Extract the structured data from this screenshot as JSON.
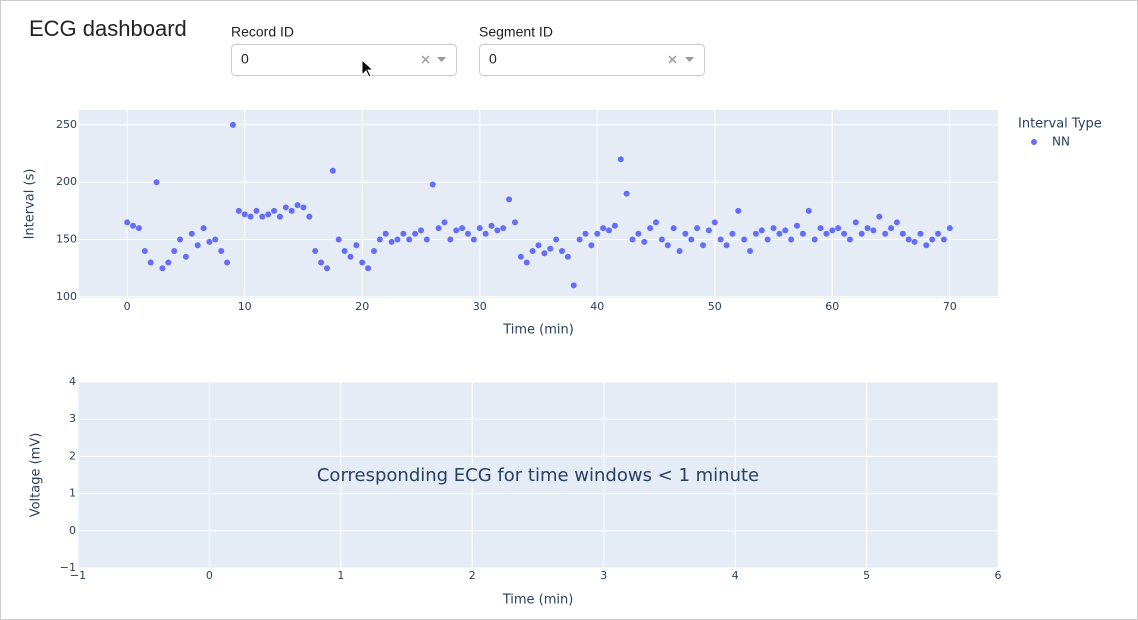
{
  "header": {
    "title": "ECG dashboard"
  },
  "controls": [
    {
      "label": "Record ID",
      "value": "0"
    },
    {
      "label": "Segment ID",
      "value": "0"
    }
  ],
  "chart_data": [
    {
      "type": "scatter",
      "xlabel": "Time (min)",
      "ylabel": "Interval (s)",
      "xlim": [
        -4.1,
        74.1
      ],
      "ylim": [
        99,
        263
      ],
      "xticks": [
        0,
        10,
        20,
        30,
        40,
        50,
        60,
        70
      ],
      "yticks": [
        100,
        150,
        200,
        250
      ],
      "grid": true,
      "legend_title": "Interval Type",
      "legend": "top-right",
      "x": [
        0,
        0.5,
        1,
        1.5,
        2,
        2.5,
        3,
        3.5,
        4,
        4.5,
        5,
        5.5,
        6,
        6.5,
        7,
        7.5,
        8,
        8.5,
        9,
        9.5,
        10,
        10.5,
        11,
        11.5,
        12,
        12.5,
        13,
        13.5,
        14,
        14.5,
        15,
        15.5,
        16,
        16.5,
        17,
        17.5,
        18,
        18.5,
        19,
        19.5,
        20,
        20.5,
        21,
        21.5,
        22,
        22.5,
        23,
        23.5,
        24,
        24.5,
        25,
        25.5,
        26,
        26.5,
        27,
        27.5,
        28,
        28.5,
        29,
        29.5,
        30,
        30.5,
        31,
        31.5,
        32,
        32.5,
        33,
        33.5,
        34,
        34.5,
        35,
        35.5,
        36,
        36.5,
        37,
        37.5,
        38,
        38.5,
        39,
        39.5,
        40,
        40.5,
        41,
        41.5,
        42,
        42.5,
        43,
        43.5,
        44,
        44.5,
        45,
        45.5,
        46,
        46.5,
        47,
        47.5,
        48,
        48.5,
        49,
        49.5,
        50,
        50.5,
        51,
        51.5,
        52,
        52.5,
        53,
        53.5,
        54,
        54.5,
        55,
        55.5,
        56,
        56.5,
        57,
        57.5,
        58,
        58.5,
        59,
        59.5,
        60,
        60.5,
        61,
        61.5,
        62,
        62.5,
        63,
        63.5,
        64,
        64.5,
        65,
        65.5,
        66,
        66.5,
        67,
        67.5,
        68,
        68.5,
        69,
        69.5,
        70
      ],
      "series": [
        {
          "name": "NN",
          "color": "#636efa",
          "values": [
            165,
            162,
            160,
            140,
            130,
            200,
            125,
            130,
            140,
            150,
            135,
            155,
            145,
            160,
            148,
            150,
            140,
            130,
            250,
            175,
            172,
            170,
            175,
            170,
            172,
            175,
            170,
            178,
            175,
            180,
            178,
            170,
            140,
            130,
            125,
            210,
            150,
            140,
            135,
            145,
            130,
            125,
            140,
            150,
            155,
            148,
            150,
            155,
            150,
            155,
            158,
            150,
            198,
            160,
            165,
            150,
            158,
            160,
            155,
            150,
            160,
            155,
            162,
            158,
            160,
            185,
            165,
            135,
            130,
            140,
            145,
            138,
            142,
            150,
            140,
            135,
            110,
            150,
            155,
            145,
            155,
            160,
            158,
            162,
            220,
            190,
            150,
            155,
            148,
            160,
            165,
            150,
            145,
            160,
            140,
            155,
            150,
            160,
            145,
            158,
            165,
            150,
            145,
            155,
            175,
            150,
            140,
            155,
            158,
            150,
            160,
            155,
            158,
            150,
            162,
            155,
            175,
            150,
            160,
            155,
            158,
            160,
            155,
            150,
            165,
            155,
            160,
            158,
            170,
            155,
            160,
            165,
            155,
            150,
            148,
            155,
            145,
            150,
            155,
            150,
            160
          ]
        }
      ]
    },
    {
      "type": "scatter",
      "xlabel": "Time (min)",
      "ylabel": "Voltage (mV)",
      "xlim": [
        -1,
        6
      ],
      "ylim": [
        -1,
        4
      ],
      "xticks": [
        {
          "value": -1,
          "label": "−1"
        },
        0,
        1,
        2,
        3,
        4,
        5,
        6
      ],
      "yticks": [
        {
          "value": -1,
          "label": "−1"
        },
        0,
        1,
        2,
        3,
        4
      ],
      "grid": true,
      "annotation": "Corresponding ECG for time windows < 1 minute",
      "series": []
    }
  ]
}
